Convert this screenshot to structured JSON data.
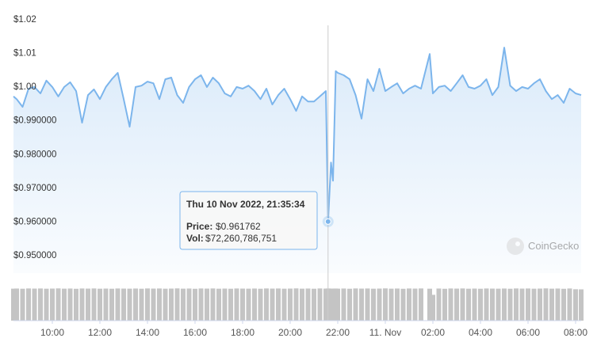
{
  "chart_data": {
    "type": "line",
    "x": [
      "2022-11-10T08:22",
      "2022-11-10T08:30",
      "2022-11-10T08:45",
      "2022-11-10T09:00",
      "2022-11-10T09:15",
      "2022-11-10T09:30",
      "2022-11-10T09:45",
      "2022-11-10T10:00",
      "2022-11-10T10:15",
      "2022-11-10T10:30",
      "2022-11-10T10:45",
      "2022-11-10T11:00",
      "2022-11-10T11:15",
      "2022-11-10T11:30",
      "2022-11-10T11:45",
      "2022-11-10T12:00",
      "2022-11-10T12:15",
      "2022-11-10T12:30",
      "2022-11-10T12:45",
      "2022-11-10T13:00",
      "2022-11-10T13:15",
      "2022-11-10T13:30",
      "2022-11-10T13:45",
      "2022-11-10T14:00",
      "2022-11-10T14:15",
      "2022-11-10T14:30",
      "2022-11-10T14:45",
      "2022-11-10T15:00",
      "2022-11-10T15:15",
      "2022-11-10T15:30",
      "2022-11-10T15:45",
      "2022-11-10T16:00",
      "2022-11-10T16:15",
      "2022-11-10T16:30",
      "2022-11-10T16:45",
      "2022-11-10T17:00",
      "2022-11-10T17:15",
      "2022-11-10T17:30",
      "2022-11-10T17:45",
      "2022-11-10T18:00",
      "2022-11-10T18:15",
      "2022-11-10T18:30",
      "2022-11-10T18:45",
      "2022-11-10T19:00",
      "2022-11-10T19:15",
      "2022-11-10T19:30",
      "2022-11-10T19:45",
      "2022-11-10T20:00",
      "2022-11-10T20:15",
      "2022-11-10T20:30",
      "2022-11-10T20:45",
      "2022-11-10T21:00",
      "2022-11-10T21:15",
      "2022-11-10T21:30",
      "2022-11-10T21:35:34",
      "2022-11-10T21:43",
      "2022-11-10T21:48",
      "2022-11-10T21:55",
      "2022-11-10T22:00",
      "2022-11-10T22:15",
      "2022-11-10T22:30",
      "2022-11-10T22:45",
      "2022-11-10T23:00",
      "2022-11-10T23:15",
      "2022-11-10T23:30",
      "2022-11-10T23:45",
      "2022-11-11T00:00",
      "2022-11-11T00:15",
      "2022-11-11T00:30",
      "2022-11-11T00:45",
      "2022-11-11T01:00",
      "2022-11-11T01:15",
      "2022-11-11T01:30",
      "2022-11-11T01:52",
      "2022-11-11T02:00",
      "2022-11-11T02:15",
      "2022-11-11T02:30",
      "2022-11-11T02:45",
      "2022-11-11T03:00",
      "2022-11-11T03:15",
      "2022-11-11T03:30",
      "2022-11-11T03:45",
      "2022-11-11T04:00",
      "2022-11-11T04:15",
      "2022-11-11T04:30",
      "2022-11-11T04:45",
      "2022-11-11T05:00",
      "2022-11-11T05:15",
      "2022-11-11T05:30",
      "2022-11-11T05:45",
      "2022-11-11T06:00",
      "2022-11-11T06:15",
      "2022-11-11T06:30",
      "2022-11-11T06:45",
      "2022-11-11T07:00",
      "2022-11-11T07:15",
      "2022-11-11T07:30",
      "2022-11-11T07:45",
      "2022-11-11T08:00",
      "2022-11-11T08:14"
    ],
    "values": [
      0.9989,
      0.9981,
      0.9958,
      1.0012,
      1.0017,
      0.9998,
      1.0036,
      1.0017,
      0.9989,
      1.0017,
      1.0031,
      1.0005,
      0.9911,
      0.9993,
      1.001,
      0.9981,
      1.0017,
      1.004,
      1.0059,
      0.9981,
      0.9899,
      1.0017,
      1.0021,
      1.0033,
      1.0028,
      0.9981,
      1.004,
      1.0045,
      0.9993,
      0.997,
      1.0017,
      1.004,
      1.0052,
      1.0017,
      1.0045,
      1.0028,
      0.9998,
      0.9989,
      1.0017,
      1.0012,
      1.0021,
      1.0005,
      0.9981,
      1.0012,
      0.9965,
      0.9993,
      1.0012,
      0.9981,
      0.9946,
      0.9989,
      0.9974,
      0.9974,
      0.9989,
      1.0005,
      0.961762,
      0.9793,
      0.9739,
      1.0064,
      1.0059,
      1.0052,
      1.004,
      0.9993,
      0.9923,
      1.004,
      1.0005,
      1.0071,
      1.0005,
      1.0017,
      1.0028,
      0.9998,
      1.0012,
      1.0021,
      1.0012,
      1.0115,
      0.9998,
      1.0017,
      1.0021,
      1.0005,
      1.0028,
      1.0052,
      1.0017,
      1.0012,
      1.0021,
      1.004,
      0.9993,
      1.0017,
      1.0134,
      1.0021,
      1.0005,
      1.0017,
      1.0012,
      1.0028,
      1.004,
      1.0005,
      0.9981,
      0.9993,
      0.997,
      1.0012,
      0.9998,
      0.9993
    ],
    "volumes": [
      71800000000,
      72100000000,
      71600000000,
      72300000000,
      71900000000,
      72200000000,
      71700000000,
      72000000000,
      72400000000,
      71800000000,
      72100000000,
      71500000000,
      72200000000,
      71900000000,
      72300000000,
      71700000000,
      72000000000,
      71600000000,
      72200000000,
      71900000000,
      71800000000,
      72100000000,
      71600000000,
      72300000000,
      71900000000,
      72200000000,
      71700000000,
      72000000000,
      72400000000,
      71800000000,
      72100000000,
      71500000000,
      72200000000,
      71900000000,
      72300000000,
      71700000000,
      72000000000,
      71600000000,
      72200000000,
      71900000000,
      71800000000,
      72100000000,
      71600000000,
      72300000000,
      71900000000,
      72200000000,
      71700000000,
      72000000000,
      72400000000,
      71800000000,
      72100000000,
      71600000000,
      72300000000,
      71900000000,
      72260786751,
      72000000000,
      71800000000,
      72100000000,
      71800000000,
      72100000000,
      71600000000,
      72300000000,
      71900000000,
      72200000000,
      71700000000,
      72000000000,
      72400000000,
      71800000000,
      72100000000,
      71500000000,
      72200000000,
      71900000000,
      72300000000,
      71700000000,
      58000000000,
      72100000000,
      71500000000,
      72200000000,
      71900000000,
      72300000000,
      71700000000,
      72000000000,
      71600000000,
      72200000000,
      71900000000,
      71800000000,
      72100000000,
      71600000000,
      72300000000,
      71900000000,
      72200000000,
      71700000000,
      72000000000,
      72400000000,
      71800000000,
      72100000000,
      71500000000,
      72200000000,
      70500000000,
      70200000000
    ],
    "color": "#7cb5ec",
    "volume_color": "#c4c4c4",
    "xlim": [
      "2022-11-10T08:22",
      "2022-11-11T08:14"
    ],
    "xticks": [
      {
        "value": "2022-11-10T10:00",
        "label": "10:00"
      },
      {
        "value": "2022-11-10T12:00",
        "label": "12:00"
      },
      {
        "value": "2022-11-10T14:00",
        "label": "14:00"
      },
      {
        "value": "2022-11-10T16:00",
        "label": "16:00"
      },
      {
        "value": "2022-11-10T18:00",
        "label": "18:00"
      },
      {
        "value": "2022-11-10T20:00",
        "label": "20:00"
      },
      {
        "value": "2022-11-10T22:00",
        "label": "22:00"
      },
      {
        "value": "2022-11-11T00:00",
        "label": "11. Nov"
      },
      {
        "value": "2022-11-11T02:00",
        "label": "02:00"
      },
      {
        "value": "2022-11-11T04:00",
        "label": "04:00"
      },
      {
        "value": "2022-11-11T06:00",
        "label": "06:00"
      },
      {
        "value": "2022-11-11T08:00",
        "label": "08:00"
      }
    ],
    "ylim": [
      0.95,
      1.02
    ],
    "yticks": [
      {
        "value": 0.95,
        "label": "$0.950000"
      },
      {
        "value": 0.96,
        "label": "$0.960000"
      },
      {
        "value": 0.97,
        "label": "$0.970000"
      },
      {
        "value": 0.98,
        "label": "$0.980000"
      },
      {
        "value": 0.99,
        "label": "$0.990000"
      },
      {
        "value": 1.0,
        "label": "$1.00"
      },
      {
        "value": 1.01,
        "label": "$1.01"
      },
      {
        "value": 1.02,
        "label": "$1.02"
      }
    ],
    "y2lim": [
      0,
      80000000000
    ],
    "grid": true,
    "tooltip": {
      "title": "Thu 10 Nov 2022, 21:35:34",
      "rows": [
        {
          "label": "Price:",
          "value": "$0.961762"
        },
        {
          "label": "Vol:",
          "value": "$72,260,786,751"
        }
      ]
    },
    "watermark": "CoinGecko"
  }
}
